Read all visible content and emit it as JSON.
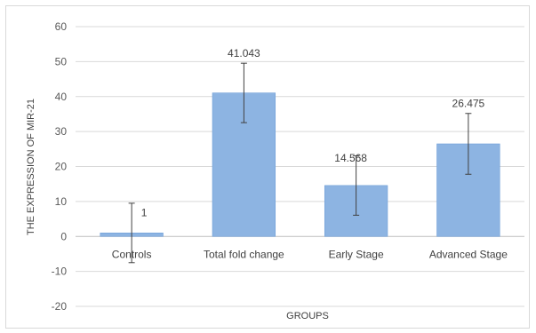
{
  "chart_data": {
    "type": "bar",
    "title": "",
    "xlabel": "GROUPS",
    "ylabel": "THE EXPRESSION OF MIR-21",
    "categories": [
      "Controls",
      "Total fold change",
      "Early Stage",
      "Advanced Stage"
    ],
    "series": [
      {
        "values": [
          1,
          41.043,
          14.568,
          26.475
        ],
        "error": [
          8.5,
          8.5,
          8.5,
          8.7
        ],
        "data_labels": [
          "1",
          "41.043",
          "14.568",
          "26.475"
        ]
      }
    ],
    "ylim": [
      -20,
      60
    ],
    "yticks": [
      60,
      50,
      40,
      30,
      20,
      10,
      0,
      -10,
      -20
    ],
    "grid": true,
    "legend": "none",
    "colors": {
      "bar": "#8db4e2",
      "bar_edge": "#6f9fd8",
      "grid": "#d9d9d9",
      "error": "#404040"
    }
  }
}
